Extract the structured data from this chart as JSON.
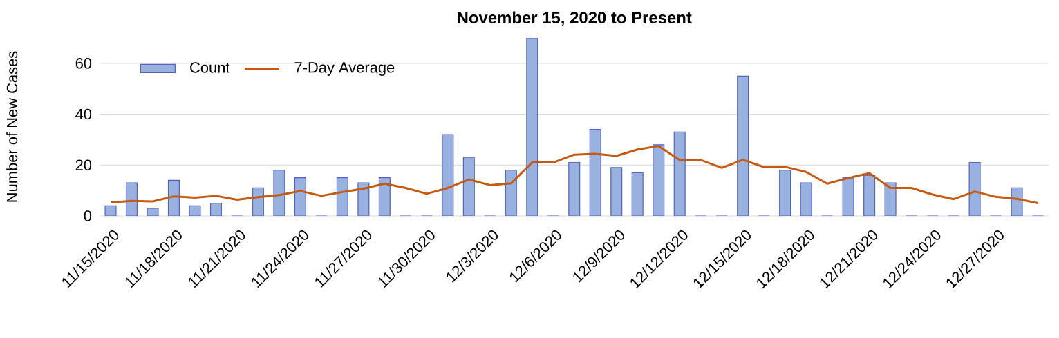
{
  "chart_data": {
    "type": "bar",
    "title": "November 15, 2020 to Present",
    "ylabel": "Number of New Cases",
    "categories": [
      "11/15/2020",
      null,
      null,
      "11/18/2020",
      null,
      null,
      "11/21/2020",
      null,
      null,
      "11/24/2020",
      null,
      null,
      "11/27/2020",
      null,
      null,
      "11/30/2020",
      null,
      null,
      "12/3/2020",
      null,
      null,
      "12/6/2020",
      null,
      null,
      "12/9/2020",
      null,
      null,
      "12/12/2020",
      null,
      null,
      "12/15/2020",
      null,
      null,
      "12/18/2020",
      null,
      null,
      "12/21/2020",
      null,
      null,
      "12/24/2020",
      null,
      null,
      "12/27/2020",
      null,
      null
    ],
    "series": [
      {
        "name": "Count",
        "color": "#98b1df",
        "values": [
          4,
          13,
          3,
          14,
          4,
          5,
          0,
          11,
          18,
          15,
          0,
          15,
          13,
          15,
          0,
          0,
          32,
          23,
          0,
          18,
          70,
          0,
          21,
          34,
          19,
          17,
          28,
          33,
          0,
          0,
          55,
          0,
          18,
          13,
          0,
          15,
          16,
          13,
          0,
          0,
          0,
          21,
          0,
          11,
          0
        ]
      },
      {
        "name": "7-Day Average",
        "type": "line",
        "color": "#c55a11",
        "values": [
          5.3,
          5.9,
          5.7,
          7.7,
          7.2,
          7.9,
          6.4,
          7.4,
          8.2,
          9.8,
          7.9,
          9.4,
          10.7,
          12.7,
          11.0,
          8.7,
          11.0,
          14.3,
          12.1,
          12.8,
          21.0,
          21.0,
          24.1,
          24.4,
          23.6,
          26.1,
          27.5,
          22.0,
          22.0,
          18.9,
          22.1,
          19.2,
          19.3,
          17.3,
          12.7,
          14.9,
          16.8,
          11.0,
          11.0,
          8.4,
          6.6,
          9.6,
          7.5,
          6.7,
          5.0
        ]
      }
    ],
    "ylim": [
      0,
      70
    ],
    "yticks": [
      0,
      20,
      40,
      60
    ],
    "grid": "y",
    "legend": "top left"
  }
}
